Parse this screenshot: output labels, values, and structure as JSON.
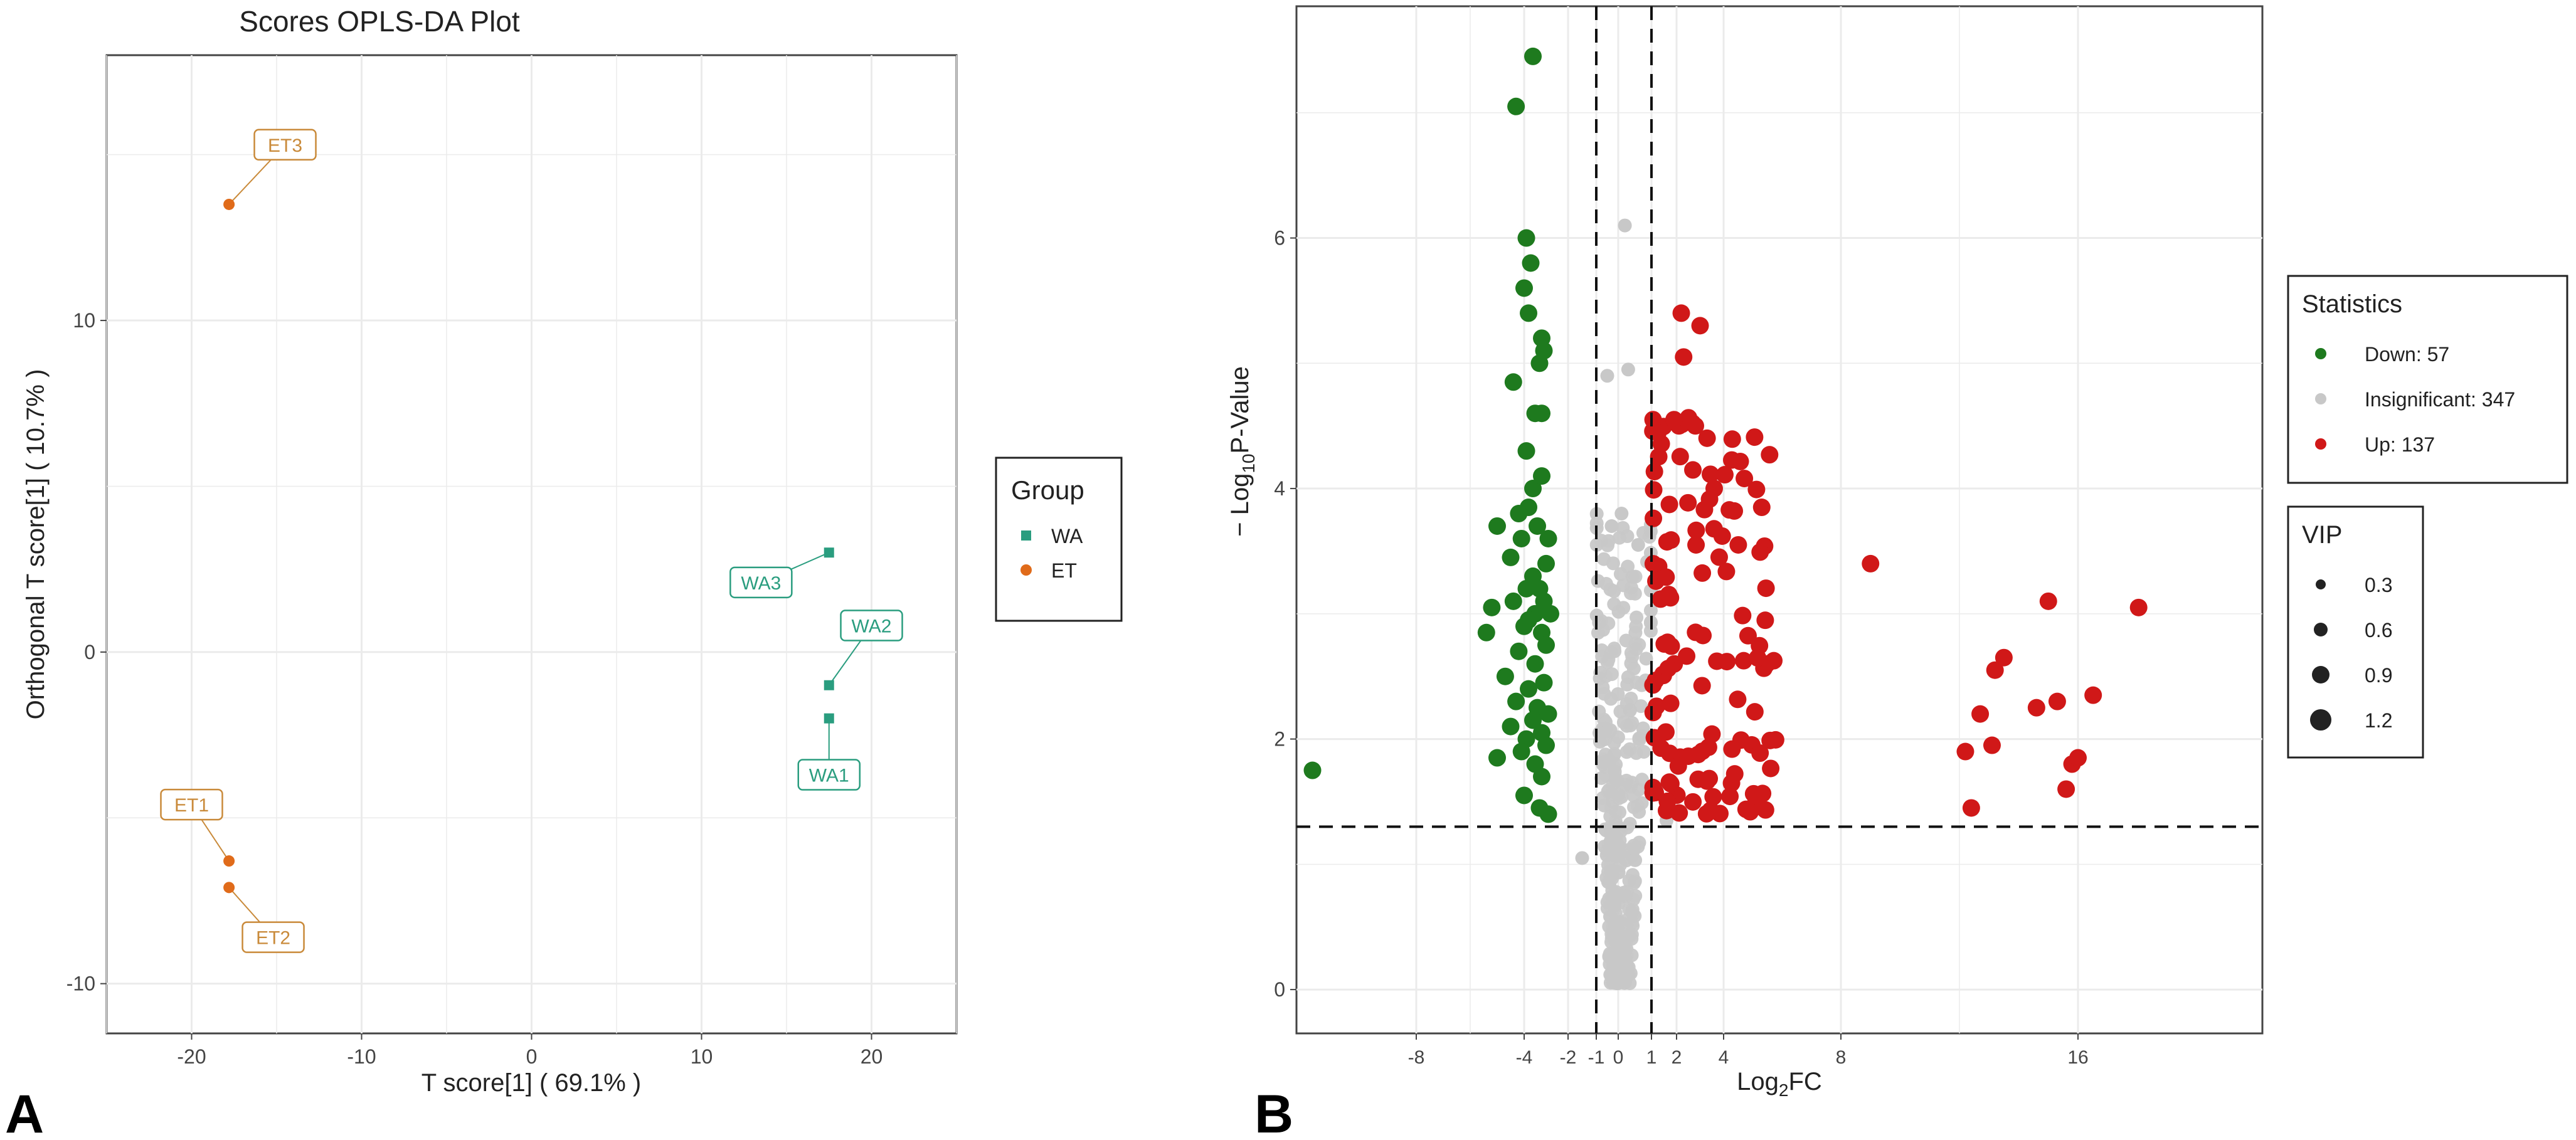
{
  "panels": {
    "a_letter": "A",
    "b_letter": "B"
  },
  "colors": {
    "wa": "#2a9d7f",
    "et": "#e06b1a",
    "et_label": "#c98a3a",
    "down": "#1e7a1e",
    "insignificant": "#c8c8c8",
    "up": "#d01818",
    "grid": "#ebebeb"
  },
  "chart_data": [
    {
      "type": "scatter",
      "title": "Scores OPLS-DA Plot",
      "xlabel": "T score[1] ( 69.1% )",
      "ylabel": "Orthogonal T score[1] ( 10.7% )",
      "xlim": [
        -25,
        25
      ],
      "ylim": [
        -11.5,
        18
      ],
      "xticks": [
        -20,
        -10,
        0,
        10,
        20
      ],
      "yticks": [
        -10,
        0,
        10
      ],
      "grid": true,
      "legend": {
        "title": "Group",
        "position": "right",
        "entries": [
          {
            "name": "WA",
            "shape": "square"
          },
          {
            "name": "ET",
            "shape": "circle"
          }
        ]
      },
      "series": [
        {
          "name": "WA",
          "shape": "square",
          "points": [
            {
              "label": "WA1",
              "x": 17.5,
              "y": -2.0,
              "lx": 17.5,
              "ly": -3.7
            },
            {
              "label": "WA2",
              "x": 17.5,
              "y": -1.0,
              "lx": 20.0,
              "ly": 0.8
            },
            {
              "label": "WA3",
              "x": 17.5,
              "y": 3.0,
              "lx": 13.5,
              "ly": 2.1
            }
          ]
        },
        {
          "name": "ET",
          "shape": "circle",
          "points": [
            {
              "label": "ET1",
              "x": -17.8,
              "y": -6.3,
              "lx": -20.0,
              "ly": -4.6
            },
            {
              "label": "ET2",
              "x": -17.8,
              "y": -7.1,
              "lx": -15.2,
              "ly": -8.6
            },
            {
              "label": "ET3",
              "x": -17.8,
              "y": 13.5,
              "lx": -14.5,
              "ly": 15.3
            }
          ]
        }
      ]
    },
    {
      "type": "scatter",
      "title": "",
      "xlabel_main": "Log",
      "xlabel_sub": "2",
      "xlabel_tail": "FC",
      "ylabel_pre": "− Log",
      "ylabel_sub": "10",
      "ylabel_tail": "P-Value",
      "xlim": [
        -11.5,
        19.5
      ],
      "ylim": [
        -0.35,
        7.85
      ],
      "xticks": [
        -8,
        -4,
        -2,
        -1,
        0,
        1,
        2,
        4,
        8,
        16
      ],
      "yticks": [
        0,
        2,
        4,
        6
      ],
      "x_scale_note": "axis ticks are non-linearly spaced (symlog-like)",
      "thresholds": {
        "x": [
          -1,
          1
        ],
        "y": 1.3
      },
      "grid": true,
      "legends": [
        {
          "title": "Statistics",
          "position": "right",
          "entries": [
            {
              "name": "Down: 57",
              "key": "down"
            },
            {
              "name": "Insignificant: 347",
              "key": "insignificant"
            },
            {
              "name": "Up: 137",
              "key": "up"
            }
          ]
        },
        {
          "title": "VIP",
          "position": "right",
          "entries": [
            {
              "name": "0.3",
              "value": 0.3
            },
            {
              "name": "0.6",
              "value": 0.6
            },
            {
              "name": "0.9",
              "value": 0.9
            },
            {
              "name": "1.2",
              "value": 1.2
            }
          ]
        }
      ],
      "series": [
        {
          "name": "Down: 57",
          "key": "down",
          "points": [
            [
              -11.2,
              1.75
            ],
            [
              -3.6,
              7.45
            ],
            [
              -4.3,
              7.05
            ],
            [
              -3.9,
              6.0
            ],
            [
              -3.7,
              5.8
            ],
            [
              -4.0,
              5.6
            ],
            [
              -3.8,
              5.4
            ],
            [
              -3.2,
              5.2
            ],
            [
              -3.1,
              5.1
            ],
            [
              -3.3,
              5.0
            ],
            [
              -4.4,
              4.85
            ],
            [
              -3.5,
              4.6
            ],
            [
              -3.2,
              4.6
            ],
            [
              -3.9,
              4.3
            ],
            [
              -3.6,
              4.0
            ],
            [
              -3.2,
              4.1
            ],
            [
              -3.8,
              3.85
            ],
            [
              -4.2,
              3.8
            ],
            [
              -5.0,
              3.7
            ],
            [
              -3.4,
              3.7
            ],
            [
              -2.9,
              3.6
            ],
            [
              -4.1,
              3.6
            ],
            [
              -4.5,
              3.45
            ],
            [
              -3.0,
              3.4
            ],
            [
              -3.6,
              3.3
            ],
            [
              -3.9,
              3.2
            ],
            [
              -3.3,
              3.2
            ],
            [
              -3.1,
              3.1
            ],
            [
              -4.4,
              3.1
            ],
            [
              -5.2,
              3.05
            ],
            [
              -2.8,
              3.0
            ],
            [
              -3.5,
              3.0
            ],
            [
              -3.8,
              2.95
            ],
            [
              -4.0,
              2.9
            ],
            [
              -5.4,
              2.85
            ],
            [
              -3.2,
              2.85
            ],
            [
              -3.0,
              2.75
            ],
            [
              -4.2,
              2.7
            ],
            [
              -3.5,
              2.6
            ],
            [
              -4.7,
              2.5
            ],
            [
              -3.1,
              2.45
            ],
            [
              -3.8,
              2.4
            ],
            [
              -4.3,
              2.3
            ],
            [
              -3.4,
              2.25
            ],
            [
              -2.9,
              2.2
            ],
            [
              -3.6,
              2.15
            ],
            [
              -4.5,
              2.1
            ],
            [
              -3.2,
              2.05
            ],
            [
              -3.9,
              2.0
            ],
            [
              -3.0,
              1.95
            ],
            [
              -4.1,
              1.9
            ],
            [
              -5.0,
              1.85
            ],
            [
              -3.5,
              1.8
            ],
            [
              -3.2,
              1.7
            ],
            [
              -4.0,
              1.55
            ],
            [
              -3.3,
              1.45
            ],
            [
              -2.9,
              1.4
            ]
          ]
        },
        {
          "name": "Insignificant: 347",
          "key": "insignificant",
          "points": "generated"
        },
        {
          "name": "Up: 137",
          "key": "up",
          "points": "generated",
          "outliers": [
            [
              9.0,
              3.4
            ],
            [
              13.2,
              2.55
            ],
            [
              13.5,
              2.65
            ],
            [
              14.6,
              2.25
            ],
            [
              15.3,
              2.3
            ],
            [
              15.0,
              3.1
            ],
            [
              17.2,
              3.05
            ],
            [
              16.3,
              2.35
            ],
            [
              12.7,
              2.2
            ],
            [
              12.2,
              1.9
            ],
            [
              13.1,
              1.95
            ],
            [
              15.8,
              1.8
            ],
            [
              15.6,
              1.6
            ],
            [
              16.0,
              1.85
            ],
            [
              12.4,
              1.45
            ]
          ]
        }
      ]
    }
  ]
}
